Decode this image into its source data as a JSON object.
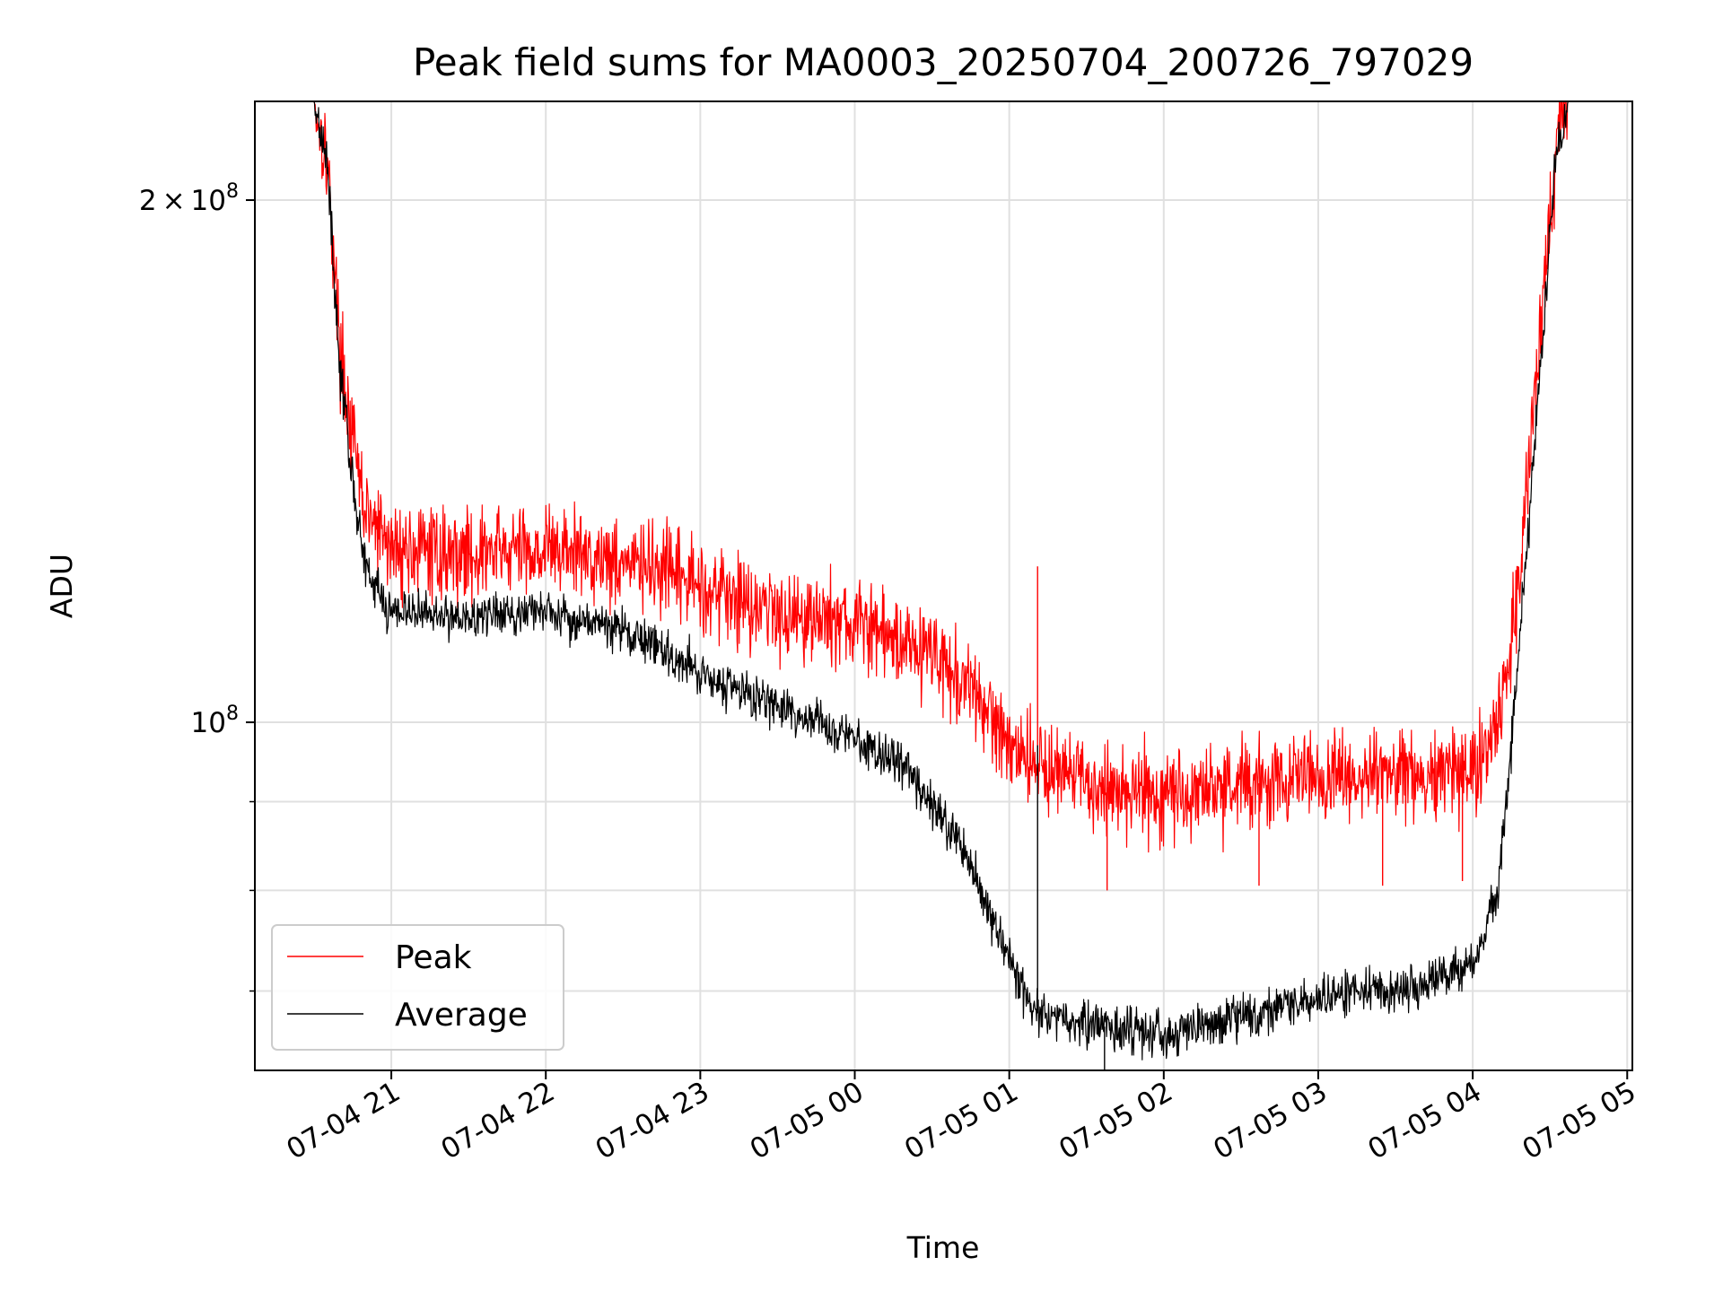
{
  "chart_data": {
    "type": "line",
    "title": "Peak field sums for MA0003_20250704_200726_797029",
    "xlabel": "Time",
    "ylabel": "ADU",
    "yscale": "log",
    "xlim": [
      "2025-07-04 20:07",
      "2025-07-05 05:02"
    ],
    "ylim": [
      63000000,
      228000000
    ],
    "grid": true,
    "legend_position": "lower-left",
    "x_ticks": [
      "07-04 21",
      "07-04 22",
      "07-04 23",
      "07-05 00",
      "07-05 01",
      "07-05 02",
      "07-05 03",
      "07-05 04",
      "07-05 05"
    ],
    "y_ticks": [
      {
        "label_base": "2",
        "label_exp": "8",
        "value": 200000000,
        "times": true
      },
      {
        "label_base": "10",
        "label_exp": "8",
        "value": 100000000,
        "times": false
      }
    ],
    "series": [
      {
        "name": "Peak",
        "color": "#ff0000",
        "noise": 0.03,
        "points": [
          [
            "2025-07-04 20:07",
            228000000
          ],
          [
            "2025-07-04 20:30",
            228000000
          ],
          [
            "2025-07-04 20:35",
            212000000
          ],
          [
            "2025-07-04 20:40",
            165000000
          ],
          [
            "2025-07-04 20:45",
            145000000
          ],
          [
            "2025-07-04 20:50",
            132000000
          ],
          [
            "2025-07-04 21:00",
            126000000
          ],
          [
            "2025-07-04 21:30",
            125000000
          ],
          [
            "2025-07-04 22:00",
            126000000
          ],
          [
            "2025-07-04 22:30",
            124000000
          ],
          [
            "2025-07-04 23:00",
            120000000
          ],
          [
            "2025-07-04 23:30",
            116000000
          ],
          [
            "2025-07-05 00:00",
            114000000
          ],
          [
            "2025-07-05 00:30",
            110000000
          ],
          [
            "2025-07-05 00:50",
            102000000
          ],
          [
            "2025-07-05 01:05",
            96000000
          ],
          [
            "2025-07-05 01:30",
            92000000
          ],
          [
            "2025-07-05 02:00",
            91000000
          ],
          [
            "2025-07-05 02:30",
            92000000
          ],
          [
            "2025-07-05 03:00",
            93000000
          ],
          [
            "2025-07-05 03:30",
            93000000
          ],
          [
            "2025-07-05 04:00",
            94000000
          ],
          [
            "2025-07-05 04:10",
            100000000
          ],
          [
            "2025-07-05 04:18",
            120000000
          ],
          [
            "2025-07-05 04:25",
            160000000
          ],
          [
            "2025-07-05 04:32",
            210000000
          ],
          [
            "2025-07-05 04:37",
            228000000
          ],
          [
            "2025-07-05 05:02",
            228000000
          ]
        ]
      },
      {
        "name": "Average",
        "color": "#000000",
        "noise": 0.015,
        "points": [
          [
            "2025-07-04 20:07",
            228000000
          ],
          [
            "2025-07-04 20:30",
            228000000
          ],
          [
            "2025-07-04 20:35",
            212000000
          ],
          [
            "2025-07-04 20:40",
            160000000
          ],
          [
            "2025-07-04 20:45",
            138000000
          ],
          [
            "2025-07-04 20:50",
            122000000
          ],
          [
            "2025-07-04 21:00",
            116000000
          ],
          [
            "2025-07-04 21:30",
            115000000
          ],
          [
            "2025-07-04 22:00",
            116000000
          ],
          [
            "2025-07-04 22:30",
            113000000
          ],
          [
            "2025-07-04 23:00",
            107000000
          ],
          [
            "2025-07-04 23:30",
            102000000
          ],
          [
            "2025-07-05 00:00",
            98000000
          ],
          [
            "2025-07-05 00:20",
            94000000
          ],
          [
            "2025-07-05 00:40",
            86000000
          ],
          [
            "2025-07-05 00:55",
            76000000
          ],
          [
            "2025-07-05 01:10",
            68000000
          ],
          [
            "2025-07-05 01:30",
            67000000
          ],
          [
            "2025-07-05 02:00",
            66000000
          ],
          [
            "2025-07-05 02:30",
            67500000
          ],
          [
            "2025-07-05 03:00",
            69500000
          ],
          [
            "2025-07-05 03:30",
            70000000
          ],
          [
            "2025-07-05 04:00",
            72000000
          ],
          [
            "2025-07-05 04:10",
            80000000
          ],
          [
            "2025-07-05 04:18",
            110000000
          ],
          [
            "2025-07-05 04:25",
            150000000
          ],
          [
            "2025-07-05 04:32",
            210000000
          ],
          [
            "2025-07-05 04:37",
            228000000
          ],
          [
            "2025-07-05 05:02",
            228000000
          ]
        ]
      }
    ],
    "spikes": [
      {
        "series": "Peak",
        "time": "2025-07-05 01:11",
        "value": 123000000
      },
      {
        "series": "Average",
        "time": "2025-07-05 01:11",
        "value": 97000000
      },
      {
        "series": "Peak",
        "time": "2025-07-05 01:38",
        "value": 80000000
      },
      {
        "series": "Peak",
        "time": "2025-07-05 02:37",
        "value": 80500000
      },
      {
        "series": "Peak",
        "time": "2025-07-05 03:25",
        "value": 80500000
      },
      {
        "series": "Peak",
        "time": "2025-07-05 03:56",
        "value": 81000000
      },
      {
        "series": "Average",
        "time": "2025-07-05 01:37",
        "value": 62800000
      }
    ]
  }
}
